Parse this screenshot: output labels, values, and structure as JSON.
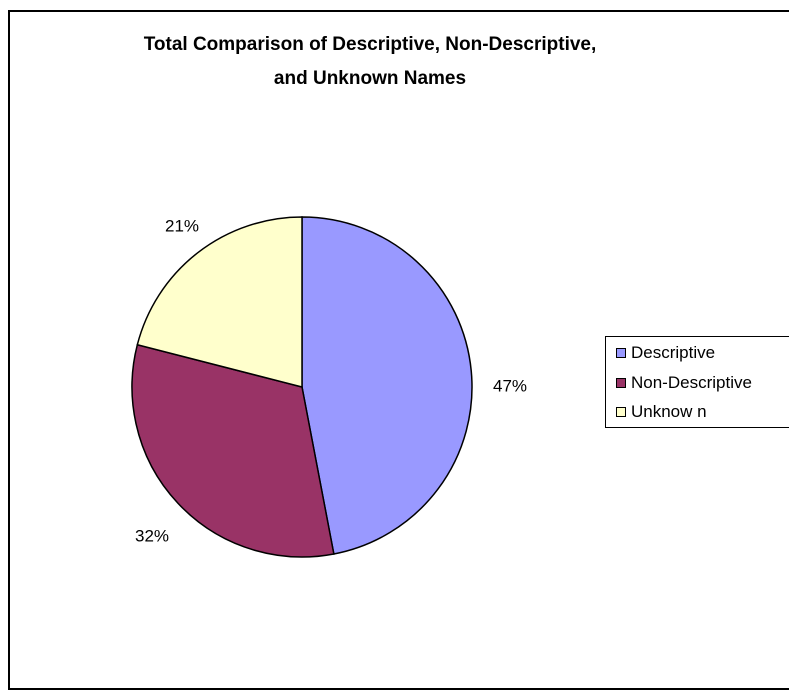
{
  "chart_data": {
    "type": "pie",
    "title_lines": [
      "Total Comparison of Descriptive, Non-Descriptive,",
      "and Unknown Names"
    ],
    "categories": [
      "Descriptive",
      "Non-Descriptive",
      "Unknow n"
    ],
    "values": [
      47,
      32,
      21
    ],
    "data_labels": [
      "47%",
      "32%",
      "21%"
    ],
    "colors": [
      "#9999ff",
      "#993366",
      "#ffffcc"
    ],
    "legend_placement": "right"
  }
}
